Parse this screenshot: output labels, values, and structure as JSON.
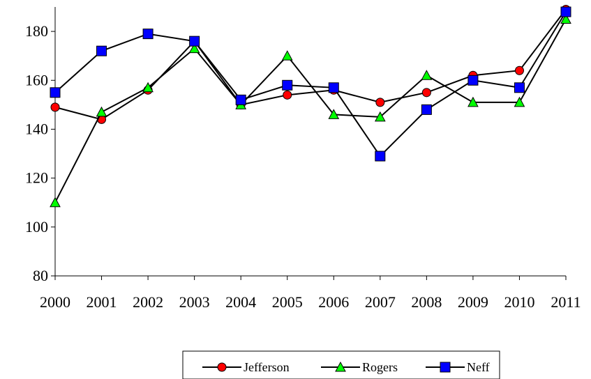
{
  "chart_data": {
    "type": "line",
    "x": [
      "2000",
      "2001",
      "2002",
      "2003",
      "2004",
      "2005",
      "2006",
      "2007",
      "2008",
      "2009",
      "2010",
      "2011"
    ],
    "ylim": [
      80,
      190
    ],
    "yticks": [
      "80",
      "100",
      "120",
      "140",
      "160",
      "180"
    ],
    "grid": false,
    "legend_position": "bottom",
    "series": [
      {
        "name": "Jefferson",
        "marker": "circle",
        "color": "#ff0000",
        "values": [
          149,
          144,
          156,
          176,
          150,
          154,
          156,
          151,
          155,
          162,
          164,
          189
        ]
      },
      {
        "name": "Rogers",
        "marker": "triangle",
        "color": "#00ff00",
        "values": [
          110,
          147,
          157,
          173,
          150,
          170,
          146,
          145,
          162,
          151,
          151,
          185
        ]
      },
      {
        "name": "Neff",
        "marker": "square",
        "color": "#0000ff",
        "values": [
          155,
          172,
          179,
          176,
          152,
          158,
          157,
          129,
          148,
          160,
          157,
          188
        ]
      }
    ]
  }
}
